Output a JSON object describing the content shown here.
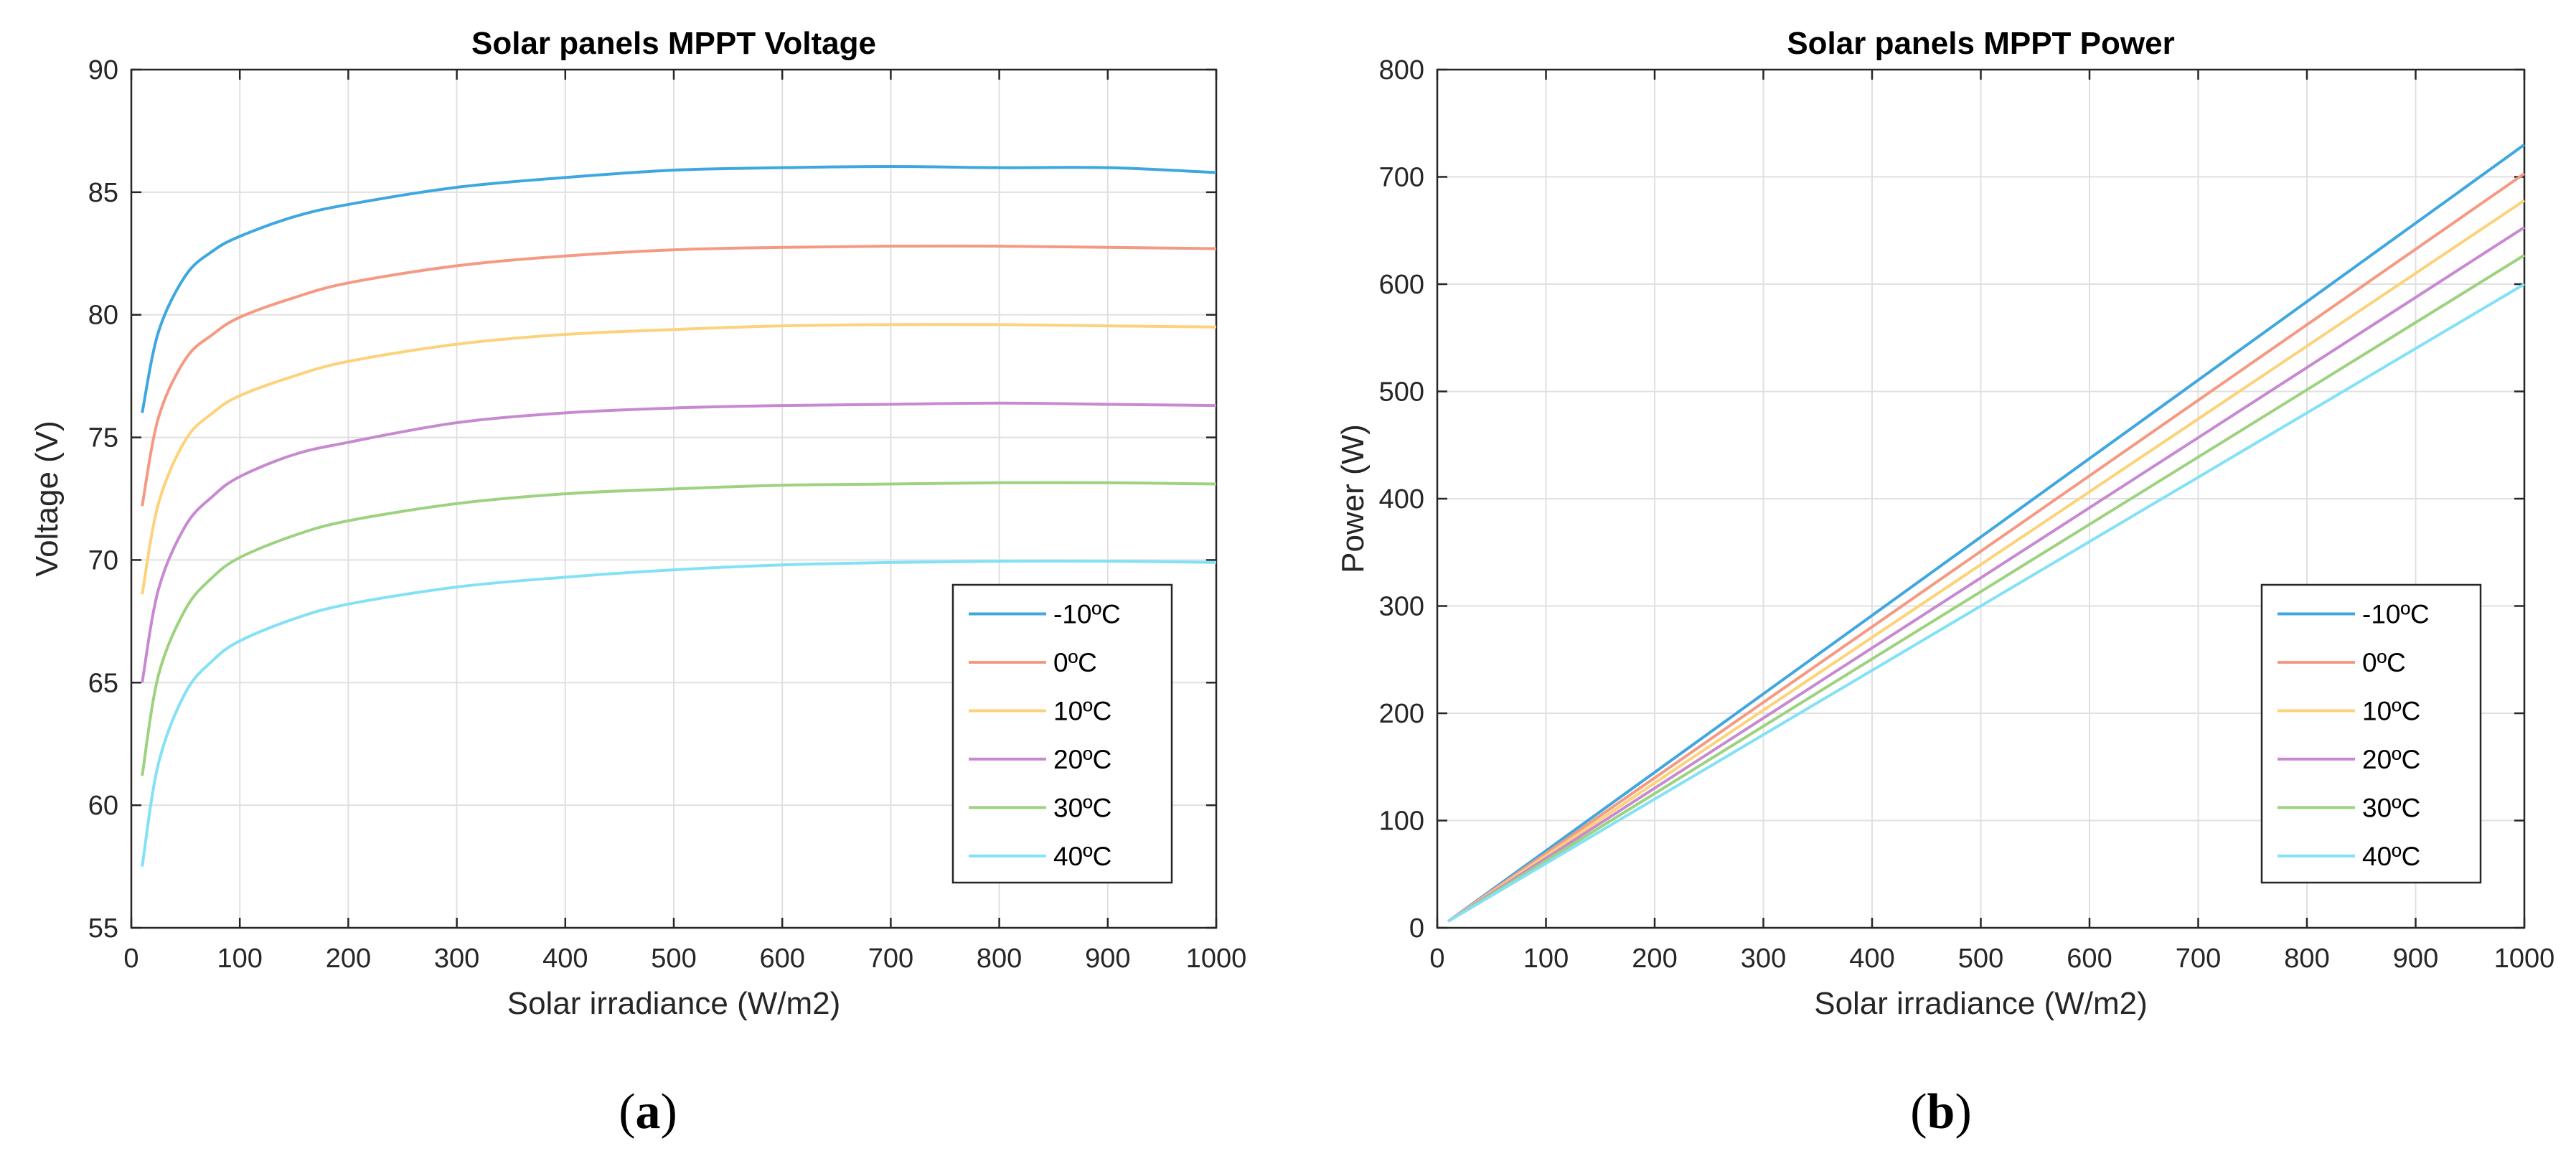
{
  "chart_data": [
    {
      "type": "line",
      "title": "Solar panels MPPT Voltage",
      "xlabel": "Solar irradiance (W/m2)",
      "ylabel": "Voltage (V)",
      "xlim": [
        0,
        1000
      ],
      "ylim": [
        55,
        90
      ],
      "xticks": [
        0,
        100,
        200,
        300,
        400,
        500,
        600,
        700,
        800,
        900,
        1000
      ],
      "yticks": [
        55,
        60,
        65,
        70,
        75,
        80,
        85,
        90
      ],
      "grid": true,
      "legend_position": "bottom-right",
      "x": [
        10,
        25,
        50,
        75,
        100,
        150,
        200,
        300,
        400,
        500,
        600,
        700,
        800,
        900,
        1000
      ],
      "series": [
        {
          "name": "-10ºC",
          "color": "#3fa7e0",
          "values": [
            76.0,
            79.3,
            81.6,
            82.6,
            83.2,
            84.0,
            84.5,
            85.2,
            85.6,
            85.9,
            86.0,
            86.05,
            86.0,
            86.0,
            85.8
          ]
        },
        {
          "name": "0ºC",
          "color": "#f59a82",
          "values": [
            72.2,
            75.8,
            78.2,
            79.2,
            79.9,
            80.7,
            81.3,
            82.0,
            82.4,
            82.65,
            82.75,
            82.8,
            82.8,
            82.75,
            82.7
          ]
        },
        {
          "name": "10ºC",
          "color": "#fcd27a",
          "values": [
            68.6,
            72.3,
            74.9,
            76.0,
            76.7,
            77.5,
            78.1,
            78.8,
            79.2,
            79.4,
            79.55,
            79.6,
            79.6,
            79.55,
            79.5
          ]
        },
        {
          "name": "20ºC",
          "color": "#c78ad0",
          "values": [
            65.0,
            68.8,
            71.4,
            72.6,
            73.4,
            74.3,
            74.8,
            75.6,
            76.0,
            76.2,
            76.3,
            76.35,
            76.4,
            76.35,
            76.3
          ]
        },
        {
          "name": "30ºC",
          "color": "#9dd27f",
          "values": [
            61.2,
            65.3,
            68.0,
            69.3,
            70.1,
            71.0,
            71.6,
            72.3,
            72.7,
            72.9,
            73.05,
            73.1,
            73.15,
            73.15,
            73.1
          ]
        },
        {
          "name": "40ºC",
          "color": "#83e1f5",
          "values": [
            57.5,
            61.7,
            64.6,
            65.9,
            66.7,
            67.6,
            68.2,
            68.9,
            69.3,
            69.6,
            69.8,
            69.9,
            69.95,
            69.95,
            69.9
          ]
        }
      ]
    },
    {
      "type": "line",
      "title": "Solar panels MPPT Power",
      "xlabel": "Solar irradiance (W/m2)",
      "ylabel": "Power (W)",
      "xlim": [
        0,
        1000
      ],
      "ylim": [
        0,
        800
      ],
      "xticks": [
        0,
        100,
        200,
        300,
        400,
        500,
        600,
        700,
        800,
        900,
        1000
      ],
      "yticks": [
        0,
        100,
        200,
        300,
        400,
        500,
        600,
        700,
        800
      ],
      "grid": true,
      "legend_position": "bottom-right",
      "x": [
        10,
        1000
      ],
      "series": [
        {
          "name": "-10ºC",
          "color": "#3fa7e0",
          "values": [
            6,
            730
          ]
        },
        {
          "name": "0ºC",
          "color": "#f59a82",
          "values": [
            6,
            703
          ]
        },
        {
          "name": "10ºC",
          "color": "#fcd27a",
          "values": [
            6,
            678
          ]
        },
        {
          "name": "20ºC",
          "color": "#c78ad0",
          "values": [
            6,
            653
          ]
        },
        {
          "name": "30ºC",
          "color": "#9dd27f",
          "values": [
            6,
            627
          ]
        },
        {
          "name": "40ºC",
          "color": "#83e1f5",
          "values": [
            6,
            600
          ]
        }
      ]
    }
  ],
  "captions": {
    "a": {
      "open": "(",
      "letter": "a",
      "close": ")"
    },
    "b": {
      "open": "(",
      "letter": "b",
      "close": ")"
    }
  }
}
